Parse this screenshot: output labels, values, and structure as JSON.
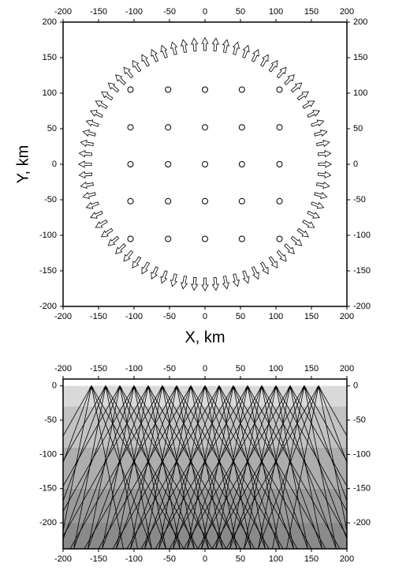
{
  "chart_data": [
    {
      "type": "map",
      "xlabel": "X, km",
      "ylabel": "Y, km",
      "xlim": [
        -200,
        200
      ],
      "ylim": [
        -200,
        200
      ],
      "xticks": [
        -200,
        -150,
        -100,
        -50,
        0,
        50,
        100,
        150,
        200
      ],
      "yticks": [
        -200,
        -150,
        -100,
        -50,
        0,
        50,
        100,
        150,
        200
      ],
      "station_x": [
        -105,
        -52,
        0,
        52,
        105
      ],
      "station_y": [
        -105,
        -52,
        0,
        52,
        105
      ],
      "arrow_azimuth": [
        0,
        5,
        10,
        15,
        20,
        25,
        30,
        35,
        40,
        45,
        50,
        55,
        60,
        65,
        70,
        75,
        80,
        85,
        90,
        95,
        100,
        105,
        110,
        115,
        120,
        125,
        130,
        135,
        140,
        145,
        150,
        155,
        160,
        165,
        170,
        175,
        180,
        185,
        190,
        195,
        200,
        205,
        210,
        215,
        220,
        225,
        230,
        235,
        240,
        245,
        250,
        255,
        260,
        265,
        270,
        275,
        280,
        285,
        290,
        295,
        300,
        305,
        310,
        315,
        320,
        325,
        330,
        335,
        340,
        345,
        350,
        355
      ],
      "arrow_radius": 160,
      "arrow_length": 18,
      "color": "#000000"
    },
    {
      "type": "section",
      "xlim": [
        -200,
        200
      ],
      "ylim": [
        -238,
        10
      ],
      "xticks": [
        -200,
        -150,
        -100,
        -50,
        0,
        50,
        100,
        150,
        200
      ],
      "yticks": [
        -200,
        -150,
        -100,
        -50,
        0
      ],
      "source_x": [
        -160,
        -140,
        -120,
        -100,
        -80,
        -60,
        -40,
        -20,
        0,
        20,
        40,
        60,
        80,
        100,
        120,
        140,
        160
      ],
      "ray_offsets": [
        -130,
        -85,
        -45,
        45,
        85,
        130
      ],
      "layer_tops": [
        0,
        -30,
        -90,
        -150,
        -200
      ],
      "layer_colors": [
        "#d9d9d9",
        "#c2c2c2",
        "#adadad",
        "#9a9a9a",
        "#8a8a8a"
      ],
      "color": "#000000"
    }
  ]
}
